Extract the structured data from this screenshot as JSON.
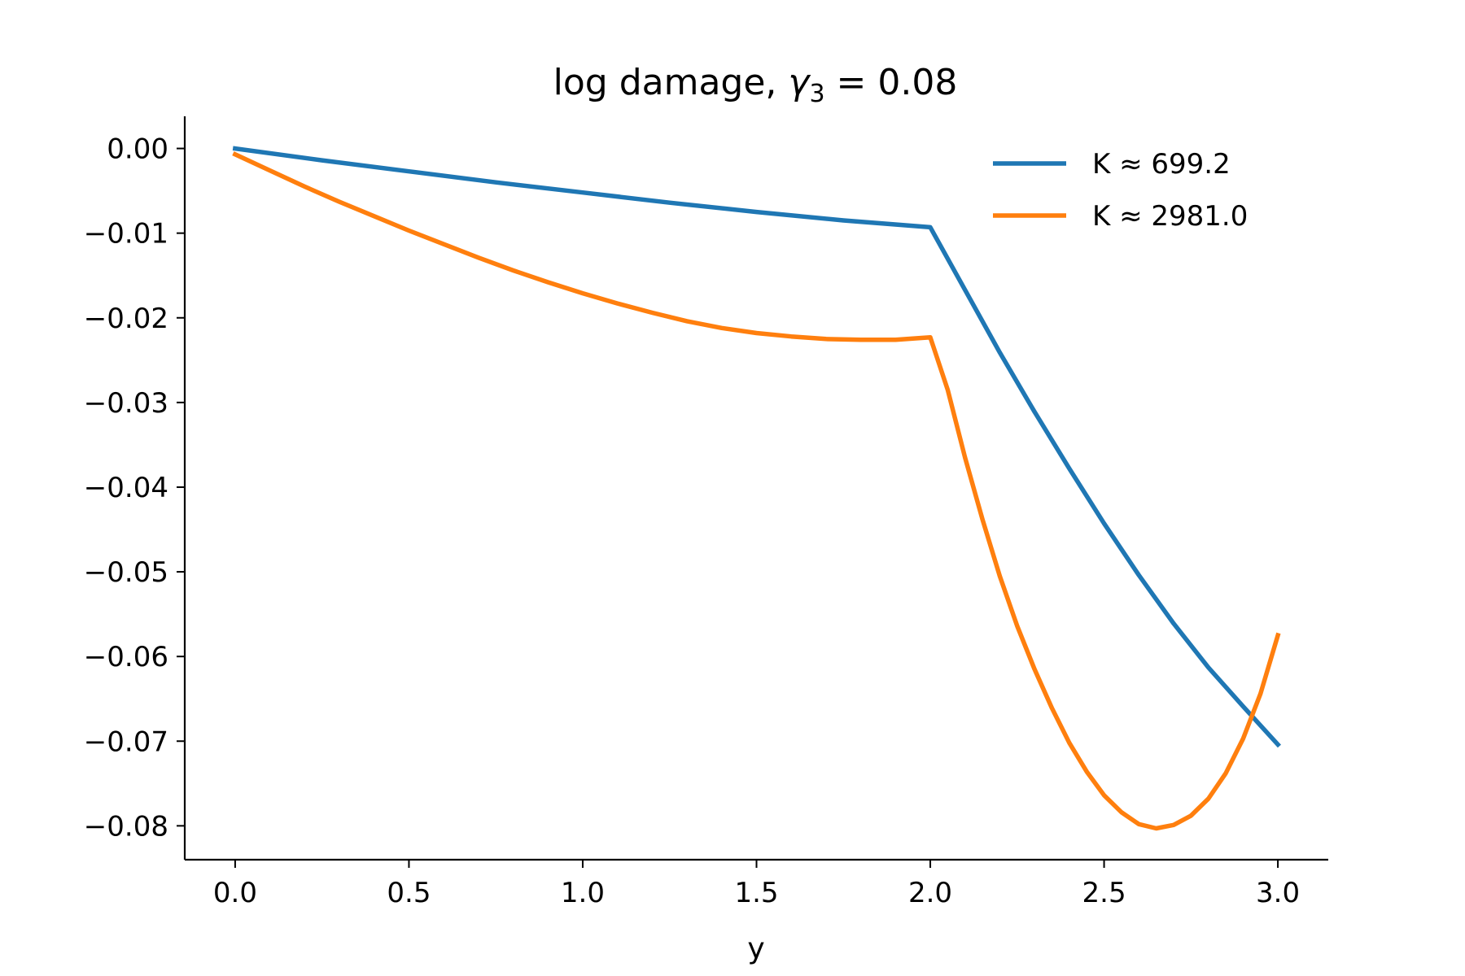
{
  "chart_data": {
    "type": "line",
    "title_text": "log damage, ",
    "title_math": {
      "symbol": "γ",
      "subscript": "3",
      "rest": " = 0.08"
    },
    "xlabel": "y",
    "ylabel": "",
    "xlim": [
      -0.145,
      3.145
    ],
    "ylim": [
      -0.084,
      0.0038
    ],
    "xticks": [
      0.0,
      0.5,
      1.0,
      1.5,
      2.0,
      2.5,
      3.0
    ],
    "xtick_labels": [
      "0.0",
      "0.5",
      "1.0",
      "1.5",
      "2.0",
      "2.5",
      "3.0"
    ],
    "yticks": [
      0.0,
      -0.01,
      -0.02,
      -0.03,
      -0.04,
      -0.05,
      -0.06,
      -0.07,
      -0.08
    ],
    "ytick_labels": [
      "0.00",
      "−0.01",
      "−0.02",
      "−0.03",
      "−0.04",
      "−0.05",
      "−0.06",
      "−0.07",
      "−0.08"
    ],
    "grid": false,
    "legend_position": "top-right",
    "series": [
      {
        "name": "K ≈ 699.2",
        "color": "#1f77b4",
        "x": [
          0.0,
          0.25,
          0.5,
          0.75,
          1.0,
          1.25,
          1.5,
          1.75,
          2.0,
          2.1,
          2.2,
          2.3,
          2.4,
          2.5,
          2.6,
          2.7,
          2.8,
          2.9,
          3.0
        ],
        "y": [
          0.0,
          -0.0014,
          -0.0027,
          -0.004,
          -0.0052,
          -0.0064,
          -0.0075,
          -0.0085,
          -0.0093,
          -0.0167,
          -0.0241,
          -0.0311,
          -0.0378,
          -0.0443,
          -0.0504,
          -0.0561,
          -0.0613,
          -0.0659,
          -0.0704
        ]
      },
      {
        "name": "K ≈ 2981.0",
        "color": "#ff7f0e",
        "x": [
          0.0,
          0.1,
          0.2,
          0.3,
          0.4,
          0.5,
          0.6,
          0.7,
          0.8,
          0.9,
          1.0,
          1.1,
          1.2,
          1.3,
          1.4,
          1.5,
          1.6,
          1.7,
          1.8,
          1.9,
          2.0,
          2.05,
          2.1,
          2.15,
          2.2,
          2.25,
          2.3,
          2.35,
          2.4,
          2.45,
          2.5,
          2.55,
          2.6,
          2.65,
          2.7,
          2.75,
          2.8,
          2.85,
          2.9,
          2.95,
          3.0
        ],
        "y": [
          -0.0007,
          -0.0026,
          -0.0045,
          -0.0063,
          -0.008,
          -0.0097,
          -0.0113,
          -0.0129,
          -0.0144,
          -0.0158,
          -0.0171,
          -0.0183,
          -0.0194,
          -0.0204,
          -0.0212,
          -0.0218,
          -0.0222,
          -0.0225,
          -0.0226,
          -0.0226,
          -0.0223,
          -0.0285,
          -0.0365,
          -0.0438,
          -0.0505,
          -0.0564,
          -0.0615,
          -0.0661,
          -0.0702,
          -0.0736,
          -0.0764,
          -0.0784,
          -0.0798,
          -0.0803,
          -0.0799,
          -0.0788,
          -0.0768,
          -0.0738,
          -0.0697,
          -0.0644,
          -0.0575
        ]
      }
    ]
  }
}
